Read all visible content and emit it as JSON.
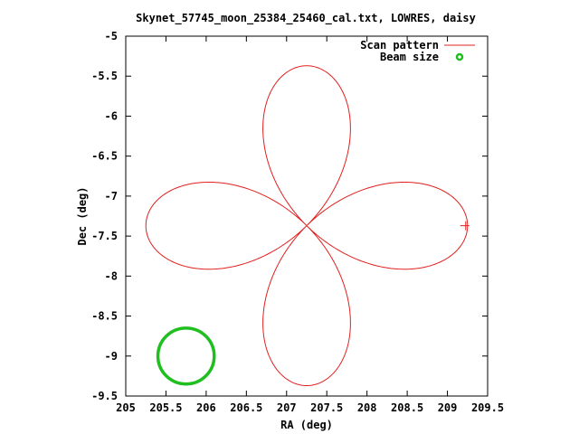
{
  "chart_data": {
    "type": "line",
    "title": "Skynet_57745_moon_25384_25460_cal.txt, LOWRES, daisy",
    "xlabel": "RA (deg)",
    "ylabel": "Dec (deg)",
    "xlim": [
      205,
      209.5
    ],
    "ylim": [
      -9.5,
      -5
    ],
    "xticks": [
      "205",
      "205.5",
      "206",
      "206.5",
      "207",
      "207.5",
      "208",
      "208.5",
      "209",
      "209.5"
    ],
    "yticks": [
      "-5",
      "-5.5",
      "-6",
      "-6.5",
      "-7",
      "-7.5",
      "-8",
      "-8.5",
      "-9",
      "-9.5"
    ],
    "grid": false,
    "legend_position": "top-right",
    "series": [
      {
        "name": "Scan pattern",
        "style": "line",
        "color": "#e0201f",
        "pattern": "daisy (4-petal rose)",
        "center": [
          207.25,
          -7.37
        ],
        "petal_radius_deg": 2.0,
        "petal_directions": [
          "east",
          "north",
          "west",
          "south"
        ]
      },
      {
        "name": "Beam size",
        "style": "circle",
        "color": "#1fbf1f",
        "center": [
          205.75,
          -9.0
        ],
        "radius_deg": 0.35
      }
    ]
  }
}
